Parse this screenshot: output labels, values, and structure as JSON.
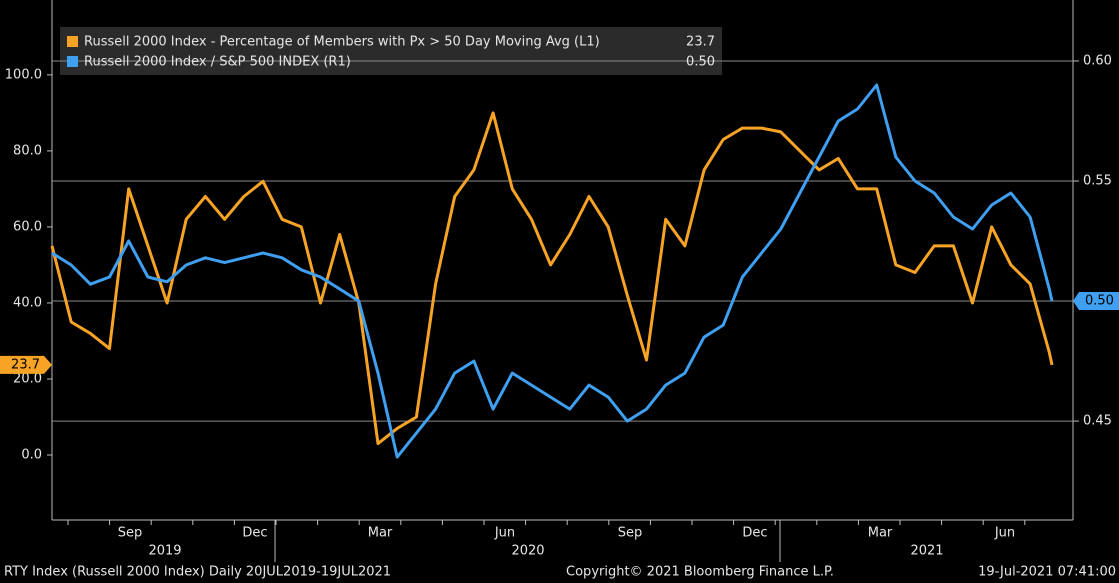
{
  "chart_data": {
    "type": "line",
    "x": [
      "2019-07-20",
      "2019-08-03",
      "2019-08-17",
      "2019-08-31",
      "2019-09-14",
      "2019-09-28",
      "2019-10-12",
      "2019-10-26",
      "2019-11-09",
      "2019-11-23",
      "2019-12-07",
      "2019-12-21",
      "2020-01-04",
      "2020-01-18",
      "2020-02-01",
      "2020-02-15",
      "2020-02-29",
      "2020-03-14",
      "2020-03-28",
      "2020-04-11",
      "2020-04-25",
      "2020-05-09",
      "2020-05-23",
      "2020-06-06",
      "2020-06-20",
      "2020-07-04",
      "2020-07-18",
      "2020-08-01",
      "2020-08-15",
      "2020-08-29",
      "2020-09-12",
      "2020-09-26",
      "2020-10-10",
      "2020-10-24",
      "2020-11-07",
      "2020-11-21",
      "2020-12-05",
      "2020-12-19",
      "2021-01-02",
      "2021-01-16",
      "2021-01-30",
      "2021-02-13",
      "2021-02-27",
      "2021-03-13",
      "2021-03-27",
      "2021-04-10",
      "2021-04-24",
      "2021-05-08",
      "2021-05-22",
      "2021-06-05",
      "2021-06-19",
      "2021-07-03",
      "2021-07-17",
      "2021-07-19"
    ],
    "series": [
      {
        "name": "Russell 2000 Index - Percentage of Members with Px > 50 Day Moving Avg (L1)",
        "color": "#f7a325",
        "axis": "y",
        "values": [
          55,
          35,
          32,
          28,
          70,
          55,
          40,
          62,
          68,
          62,
          68,
          72,
          62,
          60,
          40,
          58,
          40,
          3,
          7,
          10,
          45,
          68,
          75,
          90,
          70,
          62,
          50,
          58,
          68,
          60,
          42,
          25,
          62,
          55,
          75,
          83,
          86,
          86,
          85,
          80,
          75,
          78,
          70,
          70,
          50,
          48,
          55,
          55,
          40,
          60,
          50,
          45,
          27,
          23.7
        ]
      },
      {
        "name": "Russell 2000 Index / S&P 500 INDEX (R1)",
        "color": "#3f9ff0",
        "axis": "y2",
        "values": [
          0.52,
          0.515,
          0.507,
          0.51,
          0.525,
          0.51,
          0.508,
          0.515,
          0.518,
          0.516,
          0.518,
          0.52,
          0.518,
          0.513,
          0.51,
          0.505,
          0.5,
          0.47,
          0.435,
          0.445,
          0.455,
          0.47,
          0.475,
          0.455,
          0.47,
          0.465,
          0.46,
          0.455,
          0.465,
          0.46,
          0.45,
          0.455,
          0.465,
          0.47,
          0.485,
          0.49,
          0.51,
          0.52,
          0.53,
          0.545,
          0.56,
          0.575,
          0.58,
          0.59,
          0.56,
          0.55,
          0.545,
          0.535,
          0.53,
          0.54,
          0.545,
          0.535,
          0.505,
          0.5
        ],
        "last_label": "0.50"
      }
    ],
    "ylim": [
      -17.1,
      119.7
    ],
    "yticks": [
      {
        "value": 0,
        "label": "0.0"
      },
      {
        "value": 20,
        "label": "20.0"
      },
      {
        "value": 40,
        "label": "40.0"
      },
      {
        "value": 60,
        "label": "60.0"
      },
      {
        "value": 80,
        "label": "80.0"
      },
      {
        "value": 100,
        "label": "100.0"
      }
    ],
    "y2lim": [
      0.4088,
      0.6254
    ],
    "y2ticks": [
      0.45,
      {
        "value": 0.5,
        "label": "0.50"
      },
      0.55,
      {
        "value": 0.6,
        "label": "0.60"
      }
    ],
    "grid": true,
    "month_labels": [
      "Sep",
      "Dec",
      "Mar",
      "Jun",
      "Sep",
      "Dec",
      "Mar",
      "Jun"
    ],
    "year_labels": [
      "2019",
      "2020",
      "2021"
    ],
    "footer_left": "RTY Index (Russell 2000 Index)  Daily 20JUL2019-19JUL2021",
    "footer_center": "Copyright© 2021 Bloomberg Finance L.P.",
    "footer_right": "19-Jul-2021 07:41:00"
  }
}
